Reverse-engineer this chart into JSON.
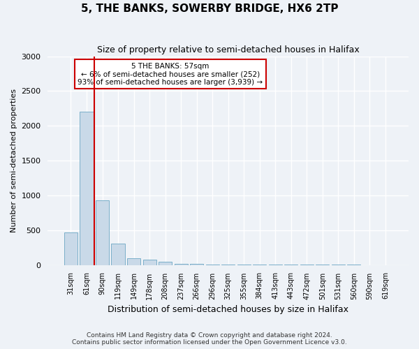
{
  "title": "5, THE BANKS, SOWERBY BRIDGE, HX6 2TP",
  "subtitle": "Size of property relative to semi-detached houses in Halifax",
  "xlabel": "Distribution of semi-detached houses by size in Halifax",
  "ylabel": "Number of semi-detached properties",
  "footer1": "Contains HM Land Registry data © Crown copyright and database right 2024.",
  "footer2": "Contains public sector information licensed under the Open Government Licence v3.0.",
  "categories": [
    "31sqm",
    "61sqm",
    "90sqm",
    "119sqm",
    "149sqm",
    "178sqm",
    "208sqm",
    "237sqm",
    "266sqm",
    "296sqm",
    "325sqm",
    "355sqm",
    "384sqm",
    "413sqm",
    "443sqm",
    "472sqm",
    "501sqm",
    "531sqm",
    "560sqm",
    "590sqm",
    "619sqm"
  ],
  "values": [
    470,
    2200,
    930,
    310,
    100,
    80,
    50,
    20,
    12,
    8,
    5,
    4,
    3,
    2,
    2,
    1,
    1,
    1,
    1,
    0,
    0
  ],
  "bar_color": "#c9d9e8",
  "bar_edge_color": "#7aafc9",
  "vline_x_index": 1.5,
  "vline_color": "#cc0000",
  "annotation_title": "5 THE BANKS: 57sqm",
  "annotation_line1": "← 6% of semi-detached houses are smaller (252)",
  "annotation_line2": "93% of semi-detached houses are larger (3,939) →",
  "annotation_box_edgecolor": "#cc0000",
  "ylim": [
    0,
    3000
  ],
  "yticks": [
    0,
    500,
    1000,
    1500,
    2000,
    2500,
    3000
  ],
  "bg_color": "#eef2f7",
  "grid_color": "#ffffff"
}
